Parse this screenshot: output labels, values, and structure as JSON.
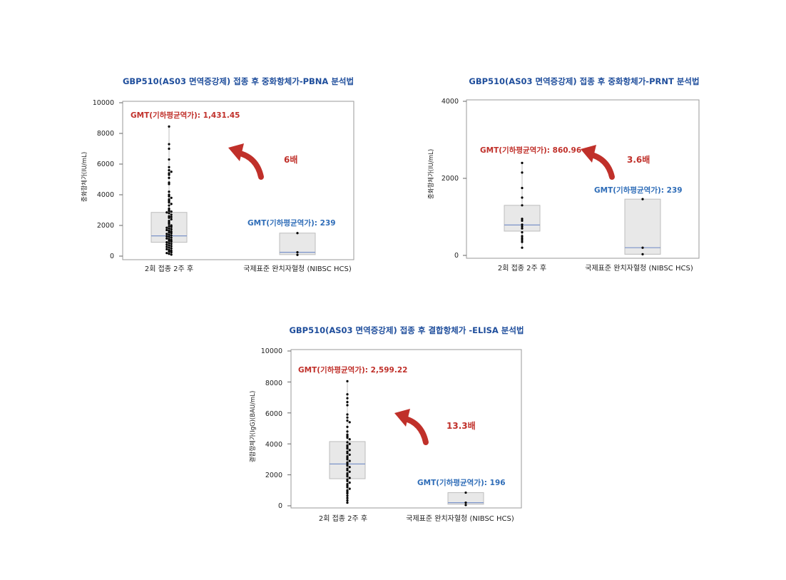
{
  "colors": {
    "title": "#1f4e9c",
    "accent_red": "#c0302a",
    "accent_blue": "#2f6db8",
    "box_fill": "#e8e8e8",
    "box_stroke": "#bdbdbd",
    "median": "#7b93c9",
    "point": "#000000",
    "frame": "#9a9a9a"
  },
  "chart_data": [
    {
      "type": "box",
      "title": "GBP510(AS03 면역증강제) 접종 후 중화항체가-PBNA 분석법",
      "ylabel": "중화항체가(IU/mL)",
      "ylim": [
        0,
        10000
      ],
      "yticks": [
        "0",
        "2000",
        "4000",
        "6000",
        "8000",
        "10000"
      ],
      "categories": [
        "2회 접종 2주 후",
        "국제표준 완치자혈청 (NIBSC HCS)"
      ],
      "boxes": [
        {
          "q1": 900,
          "median": 1320,
          "q3": 2850,
          "whisker_low": 100,
          "whisker_high": 8450,
          "points": [
            8450,
            7300,
            7000,
            6300,
            5800,
            5600,
            5500,
            5400,
            5300,
            5100,
            4800,
            4700,
            4200,
            4000,
            3900,
            3800,
            3700,
            3600,
            3500,
            3400,
            3300,
            3100,
            3000,
            2950,
            2900,
            2850,
            2800,
            2700,
            2600,
            2550,
            2500,
            2400,
            2300,
            2200,
            2100,
            2000,
            1950,
            1900,
            1850,
            1800,
            1750,
            1700,
            1650,
            1600,
            1550,
            1500,
            1450,
            1400,
            1350,
            1300,
            1250,
            1200,
            1150,
            1100,
            1050,
            1000,
            950,
            900,
            850,
            800,
            750,
            700,
            650,
            600,
            550,
            500,
            450,
            400,
            350,
            300,
            250,
            200,
            150,
            100
          ]
        },
        {
          "q1": 100,
          "median": 250,
          "q3": 1500,
          "whisker_low": 80,
          "whisker_high": 1500,
          "points": [
            1500,
            250,
            80
          ]
        }
      ],
      "annotations": {
        "gmt_left": "GMT(기하평균역가): 1,431.45",
        "gmt_right": "GMT(기하평균역가): 239",
        "ratio": "6배"
      }
    },
    {
      "type": "box",
      "title": "GBP510(AS03 면역증강제) 접종 후 중화항체가-PRNT 분석법",
      "ylabel": "중화항체가(IU/mL)",
      "ylim": [
        0,
        4000
      ],
      "yticks": [
        "0",
        "2000",
        "4000"
      ],
      "categories": [
        "2회 접종 2주 후",
        "국제표준 완치자혈청 (NIBSC HCS)"
      ],
      "boxes": [
        {
          "q1": 630,
          "median": 790,
          "q3": 1300,
          "whisker_low": 200,
          "whisker_high": 2400,
          "points": [
            2400,
            2150,
            1750,
            1500,
            1300,
            950,
            900,
            800,
            750,
            700,
            600,
            500,
            450,
            400,
            350,
            200
          ]
        },
        {
          "q1": 30,
          "median": 200,
          "q3": 1460,
          "whisker_low": 30,
          "whisker_high": 1460,
          "points": [
            1460,
            200,
            30
          ]
        }
      ],
      "annotations": {
        "gmt_left": "GMT(기하평균역가): 860.96",
        "gmt_right": "GMT(기하평균역가): 239",
        "ratio": "3.6배"
      }
    },
    {
      "type": "box",
      "title": "GBP510(AS03 면역증강제) 접종 후 결합항체가 -ELISA 분석법",
      "ylabel": "결합항체가(IgG)(BAU/mL)",
      "ylim": [
        0,
        10000
      ],
      "yticks": [
        "0",
        "2000",
        "4000",
        "6000",
        "8000",
        "10000"
      ],
      "categories": [
        "2회 접종 2주 후",
        "국제표준 완치자혈청 (NIBSC HCS)"
      ],
      "boxes": [
        {
          "q1": 1750,
          "median": 2700,
          "q3": 4150,
          "whisker_low": 200,
          "whisker_high": 8050,
          "points": [
            8050,
            7200,
            6950,
            6700,
            6500,
            5900,
            5700,
            5500,
            5400,
            5100,
            4800,
            4600,
            4500,
            4400,
            4300,
            4100,
            4000,
            3900,
            3800,
            3700,
            3600,
            3500,
            3400,
            3300,
            3200,
            3100,
            3000,
            2900,
            2800,
            2700,
            2600,
            2500,
            2400,
            2300,
            2200,
            2100,
            2000,
            1900,
            1800,
            1700,
            1600,
            1500,
            1400,
            1300,
            1200,
            1100,
            1000,
            900,
            800,
            650,
            500,
            350,
            200
          ]
        },
        {
          "q1": 100,
          "median": 200,
          "q3": 850,
          "whisker_low": 50,
          "whisker_high": 850,
          "points": [
            850,
            200,
            50
          ]
        }
      ],
      "annotations": {
        "gmt_left": "GMT(기하평균역가): 2,599.22",
        "gmt_right": "GMT(기하평균역가): 196",
        "ratio": "13.3배"
      }
    }
  ]
}
